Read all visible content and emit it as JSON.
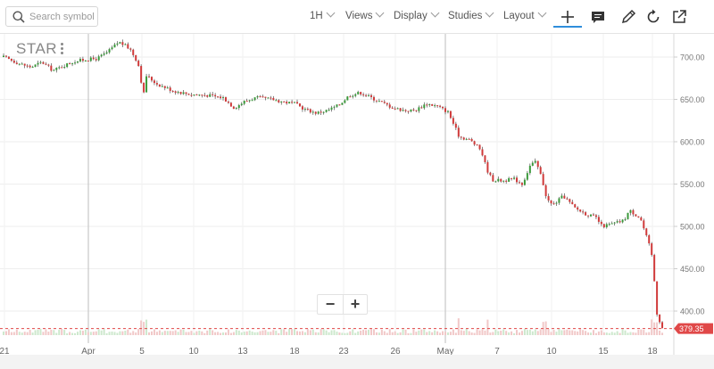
{
  "search": {
    "placeholder": "Search symbol"
  },
  "toolbar": {
    "interval": "1H",
    "views": "Views",
    "display": "Display",
    "studies": "Studies",
    "layout": "Layout"
  },
  "symbol": "STAR",
  "zoom": {
    "minus": "−",
    "plus": "+"
  },
  "colors": {
    "up": "#3a9a3a",
    "down": "#d03a3a",
    "price_tag": "#e04848",
    "volume_up": "#cde8cd",
    "volume_down": "#f1c8c8"
  },
  "chart_data": {
    "type": "candlestick",
    "symbol": "STAR",
    "interval": "1H",
    "y_axis": {
      "ticks": [
        400,
        450,
        500,
        550,
        600,
        650,
        700
      ],
      "labels": [
        "400.00",
        "450.00",
        "500.00",
        "550.00",
        "600.00",
        "650.00",
        "700.00"
      ],
      "range": [
        370,
        735
      ]
    },
    "x_axis": {
      "labels": [
        "21",
        "Apr",
        "5",
        "10",
        "13",
        "18",
        "23",
        "26",
        "May",
        "7",
        "10",
        "15",
        "18"
      ]
    },
    "vertical_separators": [
      "Apr",
      "May"
    ],
    "last_price": 379.35,
    "last_price_label": "379.35",
    "price_path": [
      [
        0,
        700
      ],
      [
        3,
        692
      ],
      [
        5,
        688
      ],
      [
        7,
        694
      ],
      [
        9,
        684
      ],
      [
        11,
        690
      ],
      [
        13,
        695
      ],
      [
        15,
        697
      ],
      [
        17,
        698
      ],
      [
        19,
        706
      ],
      [
        21,
        718
      ],
      [
        23,
        710
      ],
      [
        24.5,
        693
      ],
      [
        25.5,
        655
      ],
      [
        26,
        678
      ],
      [
        28,
        668
      ],
      [
        31,
        660
      ],
      [
        34,
        656
      ],
      [
        37,
        655
      ],
      [
        40,
        652
      ],
      [
        42,
        640
      ],
      [
        44,
        648
      ],
      [
        46,
        652
      ],
      [
        49,
        650
      ],
      [
        51,
        647
      ],
      [
        53,
        645
      ],
      [
        55,
        638
      ],
      [
        57,
        634
      ],
      [
        59,
        637
      ],
      [
        61,
        643
      ],
      [
        63,
        655
      ],
      [
        65,
        658
      ],
      [
        67,
        652
      ],
      [
        69,
        646
      ],
      [
        71,
        640
      ],
      [
        73,
        637
      ],
      [
        75,
        637
      ],
      [
        77,
        645
      ],
      [
        79,
        642
      ],
      [
        81,
        635
      ],
      [
        83,
        606
      ],
      [
        85,
        602
      ],
      [
        87,
        590
      ],
      [
        88,
        568
      ],
      [
        89,
        555
      ],
      [
        91,
        554
      ],
      [
        93,
        556
      ],
      [
        94.5,
        550
      ],
      [
        96,
        573
      ],
      [
        97,
        576
      ],
      [
        98,
        558
      ],
      [
        99,
        532
      ],
      [
        100,
        525
      ],
      [
        102,
        536
      ],
      [
        104,
        522
      ],
      [
        106,
        515
      ],
      [
        108,
        510
      ],
      [
        109,
        500
      ],
      [
        111,
        503
      ],
      [
        113,
        507
      ],
      [
        114,
        519
      ],
      [
        116,
        510
      ],
      [
        117,
        490
      ],
      [
        118,
        470
      ],
      [
        118.5,
        440
      ],
      [
        119,
        398
      ],
      [
        120,
        380
      ]
    ]
  }
}
